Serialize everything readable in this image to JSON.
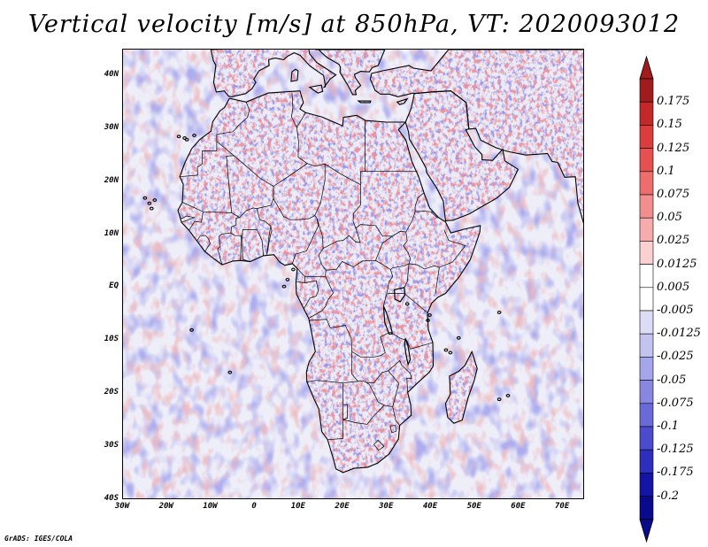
{
  "title": "Vertical velocity [m/s] at 850hPa, VT: 2020093012",
  "footer": "GrADS: IGES/COLA",
  "lat_axis": {
    "range": [
      -40,
      45
    ],
    "ticks": [
      {
        "value": 40,
        "label": "40N"
      },
      {
        "value": 30,
        "label": "30N"
      },
      {
        "value": 20,
        "label": "20N"
      },
      {
        "value": 10,
        "label": "10N"
      },
      {
        "value": 0,
        "label": "EQ"
      },
      {
        "value": -10,
        "label": "10S"
      },
      {
        "value": -20,
        "label": "20S"
      },
      {
        "value": -30,
        "label": "30S"
      },
      {
        "value": -40,
        "label": "40S"
      }
    ]
  },
  "lon_axis": {
    "range": [
      -30,
      75
    ],
    "ticks": [
      {
        "value": -30,
        "label": "30W"
      },
      {
        "value": -20,
        "label": "20W"
      },
      {
        "value": -10,
        "label": "10W"
      },
      {
        "value": 0,
        "label": "0"
      },
      {
        "value": 10,
        "label": "10E"
      },
      {
        "value": 20,
        "label": "20E"
      },
      {
        "value": 30,
        "label": "30E"
      },
      {
        "value": 40,
        "label": "40E"
      },
      {
        "value": 50,
        "label": "50E"
      },
      {
        "value": 60,
        "label": "60E"
      },
      {
        "value": 70,
        "label": "70E"
      }
    ]
  },
  "colorbar": {
    "levels": [
      "0.175",
      "0.15",
      "0.125",
      "0.1",
      "0.075",
      "0.05",
      "0.025",
      "0.0125",
      "0.005",
      "-0.005",
      "-0.0125",
      "-0.025",
      "-0.05",
      "-0.075",
      "-0.1",
      "-0.125",
      "-0.175",
      "-0.2"
    ],
    "colors": [
      "#a01c1c",
      "#c42828",
      "#dc3c3c",
      "#e65050",
      "#ee6e6e",
      "#f28e8e",
      "#f6acac",
      "#fad0d0",
      "#ffffff",
      "#ffffff",
      "#dcdcf6",
      "#c3c3f0",
      "#a5a5eb",
      "#8787e1",
      "#6969d7",
      "#4b4bcd",
      "#2d2dbe",
      "#1414a5",
      "#0a0a8c"
    ],
    "top_arrow_color": "#a01c1c",
    "bottom_arrow_color": "#0a0a8c"
  },
  "outline_color": "#000000"
}
